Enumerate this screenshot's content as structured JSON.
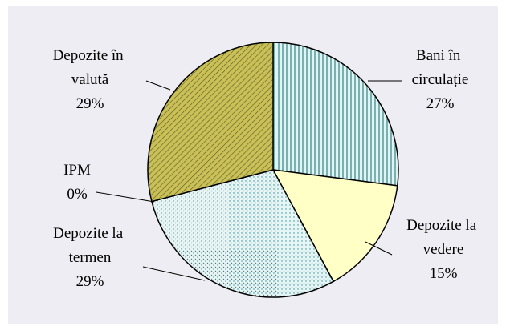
{
  "chart_data": {
    "type": "pie",
    "categories": [
      "Bani în circulație",
      "Depozite la vedere",
      "Depozite la termen",
      "IPM",
      "Depozite în valută"
    ],
    "values": [
      27,
      15,
      29,
      0,
      29
    ],
    "value_labels": [
      "27%",
      "15%",
      "29%",
      "0%",
      "29%"
    ],
    "colors": [
      "#dff4f4",
      "#ffffc6",
      "#e6f6f6",
      "#ffffff",
      "#c9c057"
    ]
  }
}
